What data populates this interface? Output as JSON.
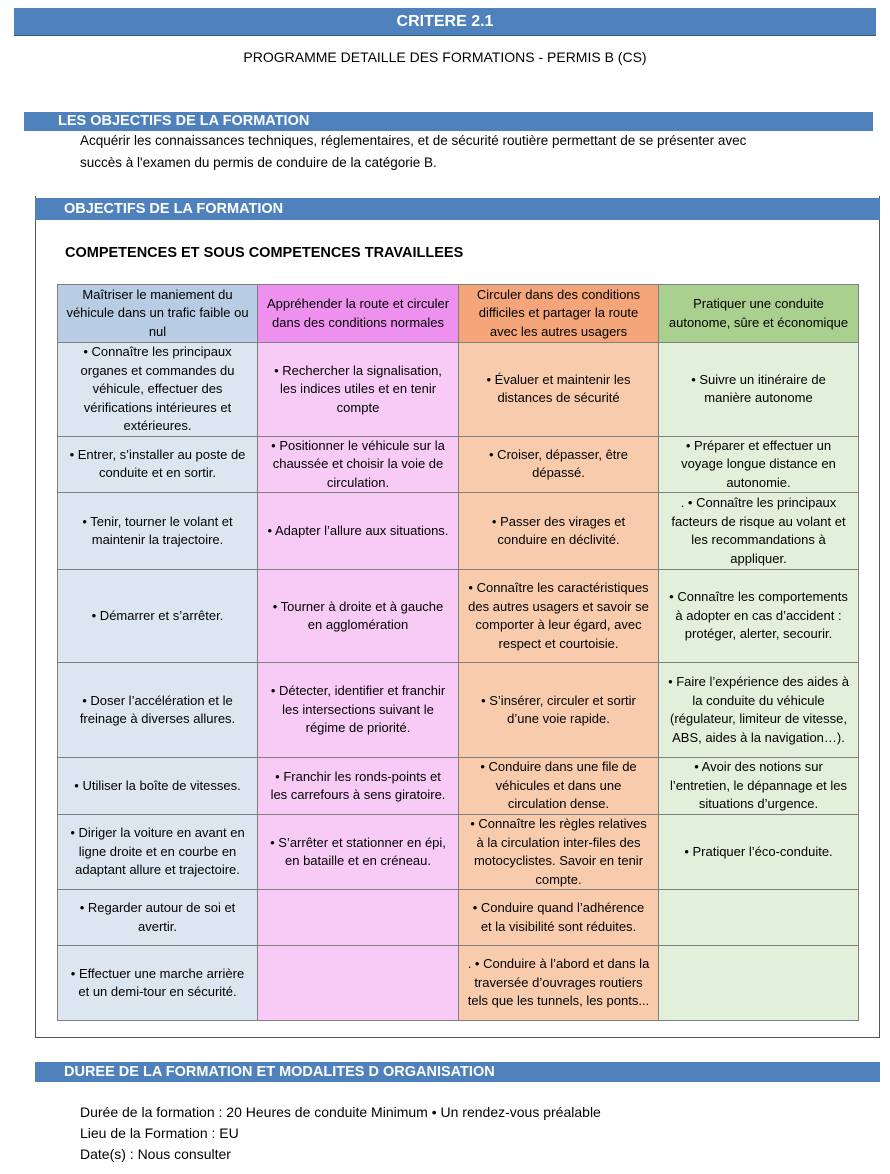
{
  "header": {
    "title": "CRITERE 2.1",
    "subtitle": "PROGRAMME DETAILLE DES FORMATIONS - PERMIS B (CS)"
  },
  "objectives": {
    "title": "LES OBJECTIFS DE LA FORMATION",
    "lines": [
      "Acquérir les connaissances techniques, réglementaires, et de sécurité routière permettant de se présenter avec",
      "succès à l'examen du permis de conduire de la catégorie B."
    ]
  },
  "competences": {
    "title": "OBJECTIFS DE LA  FORMATION",
    "heading": "COMPETENCES ET SOUS COMPETENCES TRAVAILLEES",
    "table": {
      "header": [
        "Maîtriser le maniement du véhicule dans un trafic faible ou nul",
        "Appréhender la route et circuler dans des conditions normales",
        "Circuler dans des conditions difficiles et partager la route avec les autres usagers",
        "Pratiquer une conduite autonome, sûre et économique"
      ],
      "rows": [
        [
          "• Connaître les principaux organes et commandes du véhicule, effectuer des vérifications intérieures et extérieures.",
          "• Rechercher la signalisation, les indices utiles et en tenir compte",
          "• Évaluer et maintenir les distances de sécurité",
          "• Suivre un itinéraire de manière autonome"
        ],
        [
          "• Entrer, s’installer au poste de conduite et en sortir.",
          "• Positionner le véhicule sur la chaussée et choisir la voie de circulation.",
          "• Croiser, dépasser, être dépassé.",
          "• Préparer et effectuer un voyage longue distance en autonomie."
        ],
        [
          "• Tenir, tourner le volant et maintenir la trajectoire.",
          "• Adapter l’allure aux situations.",
          "• Passer des virages et conduire en déclivité.",
          ". • Connaître les principaux facteurs de risque au volant et les recommandations à appliquer."
        ],
        [
          "• Démarrer et s’arrêter.",
          "• Tourner à droite et à gauche en agglomération",
          "• Connaître les caractéristiques des autres usagers et savoir se comporter à leur égard, avec respect et courtoisie.",
          "• Connaître les comportements à adopter en cas d’accident : protéger, alerter, secourir."
        ],
        [
          "• Doser l’accélération et le freinage à diverses allures.",
          "• Détecter, identifier et franchir les intersections suivant le régime de priorité.",
          "• S’insérer, circuler et sortir d’une voie rapide.",
          "• Faire l’expérience des aides à la conduite du véhicule (régulateur, limiteur de vitesse, ABS, aides à la navigation…)."
        ],
        [
          "• Utiliser la boîte de vitesses.",
          "• Franchir les ronds-points et les carrefours à sens giratoire.",
          "• Conduire dans une file de véhicules et dans une circulation dense.",
          "• Avoir des notions sur l’entretien, le dépannage et les situations d’urgence."
        ],
        [
          "• Diriger la voiture en avant en ligne droite et en courbe en adaptant allure et trajectoire.",
          "• S’arrêter et stationner en épi, en bataille et en créneau.",
          "• Connaître les règles relatives à la circulation inter-files des motocyclistes. Savoir en tenir compte.",
          "• Pratiquer  l’éco-conduite."
        ],
        [
          "• Regarder autour de soi et avertir.",
          null,
          "• Conduire quand l’adhérence et la visibilité sont réduites.",
          null
        ],
        [
          "• Effectuer une marche arrière et un demi-tour en sécurité.",
          null,
          ". • Conduire à l’abord et dans la traversée d’ouvrages routiers tels que les tunnels, les ponts...",
          null
        ]
      ]
    }
  },
  "organisation": {
    "title": "DUREE DE LA FORMATION ET MODALITES D ORGANISATION",
    "lines": [
      "Durée de la formation : 20 Heures de conduite Minimum • Un rendez-vous préalable",
      "Lieu de la Formation : EU",
      "Date(s) : Nous consulter"
    ]
  }
}
